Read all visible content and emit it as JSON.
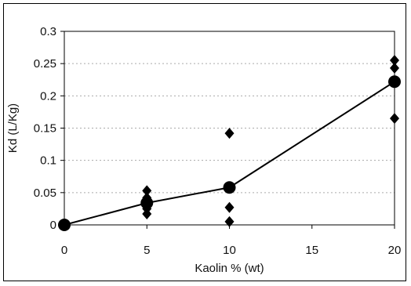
{
  "chart_data": {
    "type": "scatter",
    "title": "",
    "xlabel": "Kaolin % (wt)",
    "ylabel": "Kd (L/Kg)",
    "xlim": [
      0,
      20
    ],
    "ylim": [
      0,
      0.3
    ],
    "xticks": [
      0,
      5,
      10,
      15,
      20
    ],
    "yticks": [
      0,
      0.05,
      0.1,
      0.15,
      0.2,
      0.25,
      0.3
    ],
    "ytick_labels": [
      "0",
      "0.05",
      "0.1",
      "0.15",
      "0.2",
      "0.25",
      "0.3"
    ],
    "grid": "horizontal dashed",
    "series": [
      {
        "style": "diamond markers",
        "color": "#000000",
        "points": [
          {
            "x": 0,
            "y": 0
          },
          {
            "x": 5,
            "y": 0.053
          },
          {
            "x": 5,
            "y": 0.042
          },
          {
            "x": 5,
            "y": 0.025
          },
          {
            "x": 5,
            "y": 0.017
          },
          {
            "x": 10,
            "y": 0.142
          },
          {
            "x": 10,
            "y": 0.027
          },
          {
            "x": 10,
            "y": 0.005
          },
          {
            "x": 20,
            "y": 0.255
          },
          {
            "x": 20,
            "y": 0.243
          },
          {
            "x": 20,
            "y": 0.165
          }
        ]
      },
      {
        "style": "line with circle markers",
        "color": "#000000",
        "points": [
          {
            "x": 0,
            "y": 0
          },
          {
            "x": 5,
            "y": 0.034
          },
          {
            "x": 10,
            "y": 0.058
          },
          {
            "x": 20,
            "y": 0.222
          }
        ]
      }
    ]
  }
}
